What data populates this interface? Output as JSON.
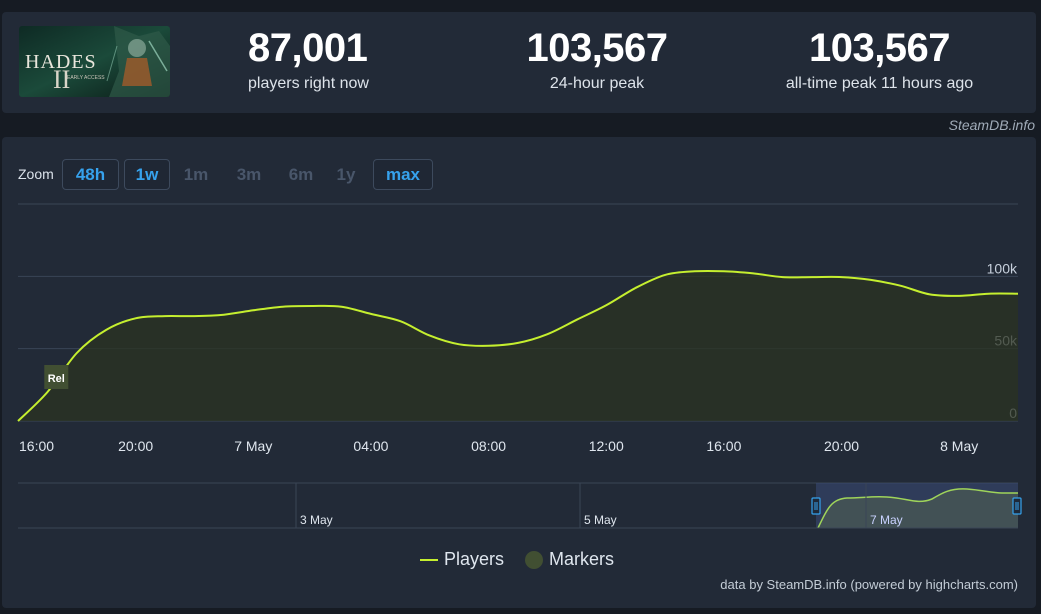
{
  "stats": {
    "current": {
      "value": "87,001",
      "label": "players right now"
    },
    "peak_24h": {
      "value": "103,567",
      "label": "24-hour peak"
    },
    "all_time": {
      "value": "103,567",
      "label": "all-time peak 11 hours ago"
    }
  },
  "game_logo": {
    "title": "HADES",
    "numeral": "II",
    "subtitle": "EARLY ACCESS"
  },
  "credit_top": "SteamDB.info",
  "zoom": {
    "label": "Zoom",
    "buttons": [
      {
        "label": "48h",
        "active": true
      },
      {
        "label": "1w",
        "active": true
      },
      {
        "label": "1m",
        "active": false
      },
      {
        "label": "3m",
        "active": false
      },
      {
        "label": "6m",
        "active": false
      },
      {
        "label": "1y",
        "active": false
      },
      {
        "label": "max",
        "active": true
      }
    ]
  },
  "chart_data": {
    "type": "area",
    "x_ticks": [
      "16:00",
      "20:00",
      "7 May",
      "04:00",
      "08:00",
      "12:00",
      "16:00",
      "20:00",
      "8 May"
    ],
    "y_ticks": [
      "0",
      "50k",
      "100k"
    ],
    "ylim": [
      0,
      150000
    ],
    "grid": true,
    "series": [
      {
        "name": "Players",
        "color": "#c5ef2f",
        "x_hours": [
          0,
          1,
          2,
          3,
          4,
          5,
          6,
          7,
          8,
          9,
          10,
          11,
          12,
          13,
          14,
          15,
          16,
          17,
          18,
          19,
          20,
          21,
          22,
          23,
          24,
          25,
          26,
          27,
          28,
          29,
          30,
          31,
          32,
          33,
          34
        ],
        "values": [
          0,
          20000,
          47000,
          63000,
          71000,
          72500,
          72500,
          73500,
          76500,
          79000,
          79500,
          79000,
          74000,
          69000,
          59000,
          53000,
          52000,
          54000,
          60000,
          70000,
          80000,
          92000,
          101000,
          103500,
          103500,
          102000,
          99500,
          99500,
          99500,
          97500,
          93500,
          87500,
          86500,
          88000,
          88000
        ]
      }
    ],
    "markers": [
      {
        "label": "Rel",
        "x_hour": 1.2
      }
    ],
    "navigator": {
      "ticks": [
        "3 May",
        "5 May",
        "7 May"
      ]
    },
    "legend": {
      "players": "Players",
      "markers": "Markers",
      "placement": "bottom-center"
    }
  },
  "credit_bottom": "data by SteamDB.info (powered by highcharts.com)"
}
